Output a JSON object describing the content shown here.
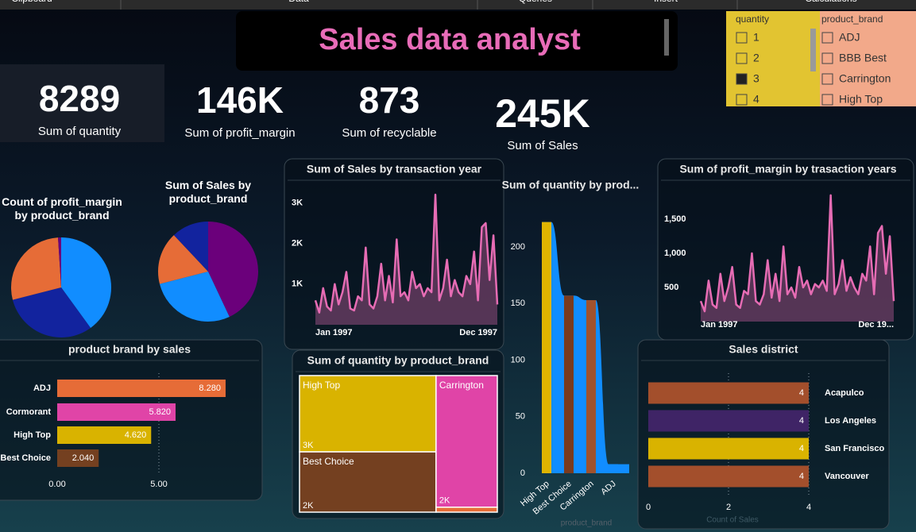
{
  "ribbon": [
    "Clipboard",
    "Data",
    "Queries",
    "Insert",
    "Calculations"
  ],
  "title": "Sales data analyst",
  "kpis": [
    {
      "value": "8289",
      "label": "Sum of quantity"
    },
    {
      "value": "146K",
      "label": "Sum of profit_margin"
    },
    {
      "value": "873",
      "label": "Sum of recyclable"
    },
    {
      "value": "245K",
      "label": "Sum of Sales"
    }
  ],
  "slicers": [
    {
      "title": "quantity",
      "items": [
        "1",
        "2",
        "3",
        "4"
      ],
      "selected": [
        "3"
      ],
      "color": "#e2c431"
    },
    {
      "title": "product_brand",
      "items": [
        "ADJ",
        "BBB Best",
        "Carrington",
        "High Top"
      ],
      "color": "#f2a98a"
    }
  ],
  "chart_data": [
    {
      "type": "pie",
      "title": "Count of profit_margin by product_brand",
      "values": [
        40,
        31,
        28,
        1
      ],
      "colors": [
        "#118dff",
        "#12239e",
        "#e66c37",
        "#6b007b"
      ]
    },
    {
      "type": "pie",
      "title": "Sum of Sales by product_brand",
      "values": [
        43,
        28,
        17,
        12
      ],
      "colors": [
        "#6b007b",
        "#118dff",
        "#e66c37",
        "#12239e"
      ]
    },
    {
      "type": "area",
      "title": "Sum of Sales by transaction year",
      "categories": [
        "Jan 1997",
        null,
        null,
        null,
        null,
        null,
        null,
        null,
        null,
        null,
        null,
        null,
        null,
        null,
        null,
        null,
        null,
        null,
        null,
        null,
        null,
        null,
        null,
        null,
        null,
        null,
        null,
        null,
        null,
        null,
        null,
        null,
        null,
        null,
        null,
        null,
        null,
        null,
        null,
        null,
        null,
        null,
        null,
        null,
        null,
        null,
        null,
        "Dec 1997"
      ],
      "values": [
        600,
        300,
        900,
        450,
        350,
        1000,
        500,
        800,
        1300,
        400,
        350,
        700,
        600,
        1900,
        500,
        400,
        700,
        1500,
        600,
        1200,
        550,
        2100,
        700,
        800,
        600,
        1300,
        900,
        1000,
        700,
        900,
        800,
        3200,
        600,
        900,
        1600,
        700,
        1100,
        800,
        700,
        1200,
        1000,
        1800,
        600,
        2400,
        2500,
        1100,
        2200,
        500
      ],
      "color": "#e66cb4",
      "ylim": [
        0,
        3300
      ],
      "yticks": [
        {
          "value": 1000,
          "label": "1K"
        },
        {
          "value": 2000,
          "label": "2K"
        },
        {
          "value": 3000,
          "label": "3K"
        }
      ]
    },
    {
      "type": "ribbon",
      "title": "Sum of quantity by prod...",
      "categories": [
        "High Top",
        "Best Choice",
        "Carrington",
        "ADJ"
      ],
      "values": [
        222,
        157,
        153,
        8
      ],
      "colors": [
        "#e0b400",
        "#7a3b1f",
        "#a0522d",
        "#118dff"
      ],
      "ribbon_color": "#118dff",
      "ylim": [
        0,
        240
      ],
      "yticks": [
        0,
        50,
        100,
        150,
        200
      ],
      "xlabel": "product_brand"
    },
    {
      "type": "area",
      "title": "Sum of profit_margin by trasaction years",
      "categories": [
        "Jan 1997",
        null,
        null,
        null,
        null,
        null,
        null,
        null,
        null,
        null,
        null,
        null,
        null,
        null,
        null,
        null,
        null,
        null,
        null,
        null,
        null,
        null,
        null,
        null,
        null,
        null,
        null,
        null,
        null,
        null,
        null,
        null,
        null,
        null,
        null,
        null,
        null,
        null,
        null,
        null,
        null,
        null,
        null,
        null,
        null,
        null,
        null,
        null,
        null,
        "Dec 19..."
      ],
      "values": [
        300,
        150,
        600,
        250,
        200,
        700,
        300,
        500,
        800,
        250,
        200,
        450,
        400,
        1000,
        300,
        250,
        400,
        900,
        350,
        700,
        300,
        1100,
        400,
        500,
        350,
        800,
        500,
        600,
        400,
        550,
        500,
        600,
        450,
        1850,
        400,
        550,
        900,
        450,
        650,
        500,
        400,
        700,
        600,
        1100,
        400,
        1300,
        1400,
        700,
        1250,
        300
      ],
      "color": "#e66cb4",
      "ylim": [
        0,
        2000
      ],
      "yticks": [
        500,
        {
          "value": 1000,
          "label": "1,000"
        },
        {
          "value": 1500,
          "label": "1,500"
        }
      ]
    },
    {
      "type": "hbar",
      "title": "product brand by sales",
      "categories": [
        "ADJ",
        "Cormorant",
        "High Top",
        "Best Choice"
      ],
      "values": [
        8.28,
        5.82,
        4.62,
        2.04
      ],
      "value_labels": [
        "8.280",
        "5.820",
        "4.620",
        "2.040"
      ],
      "colors": [
        "#e66c37",
        "#e044a7",
        "#d9b300",
        "#744020"
      ],
      "xlim": [
        0,
        10
      ],
      "xticks": [
        {
          "value": 0,
          "label": "0.00"
        },
        {
          "value": 5,
          "label": "5.00"
        }
      ],
      "grid": true
    },
    {
      "type": "treemap",
      "title": "Sum of quantity by product_brand",
      "categories": [
        "High Top",
        "Best Choice",
        "Carrington",
        null
      ],
      "values": [
        3100,
        2450,
        2400,
        90
      ],
      "value_labels": [
        "3K",
        "2K",
        "2K",
        null
      ],
      "colors": [
        "#d9b300",
        "#744020",
        "#e044a7",
        "#e66c37"
      ]
    },
    {
      "type": "hbar",
      "title": "Sales district",
      "categories": [
        "Acapulco",
        "Los Angeles",
        "San Francisco",
        "Vancouver"
      ],
      "values": [
        4,
        4,
        4,
        4
      ],
      "colors": [
        "#a34f2c",
        "#3f2466",
        "#d9b300",
        "#a34f2c"
      ],
      "xlim": [
        0,
        4
      ],
      "xticks": [
        0,
        2,
        4
      ],
      "xlabel": "Count of Sales",
      "grid": true
    }
  ]
}
